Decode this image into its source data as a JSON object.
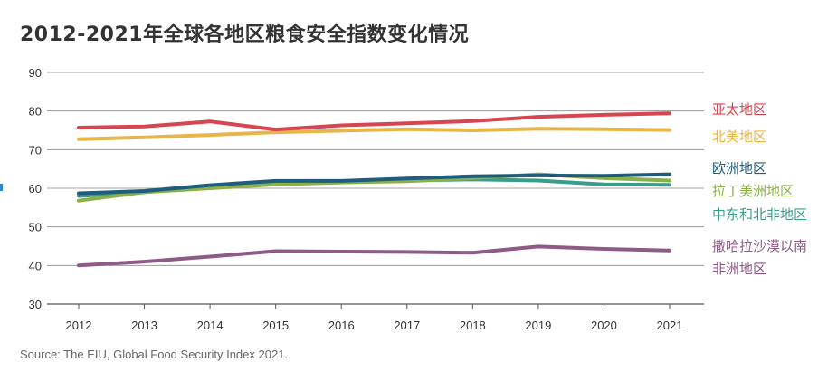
{
  "title": "2012-2021年全球各地区粮食安全指数变化情况",
  "source": "Source: The EIU, Global Food Security Index 2021.",
  "chart_data": {
    "type": "line",
    "title": "2012-2021年全球各地区粮食安全指数变化情况",
    "xlabel": "",
    "ylabel": "",
    "x": [
      "2012",
      "2013",
      "2014",
      "2015",
      "2016",
      "2017",
      "2018",
      "2019",
      "2020",
      "2021"
    ],
    "yticks": [
      30,
      40,
      50,
      60,
      70,
      80,
      90
    ],
    "ylim": [
      30,
      90
    ],
    "grid": "horizontal",
    "legend_position": "right, labels beside line ends",
    "series": [
      {
        "name": "亚太地区",
        "color": "#d64550",
        "values": [
          75.7,
          76.0,
          77.3,
          75.2,
          76.3,
          76.8,
          77.4,
          78.5,
          79.0,
          79.4
        ]
      },
      {
        "name": "北美地区",
        "color": "#e8b54a",
        "values": [
          72.7,
          73.2,
          73.8,
          74.5,
          74.9,
          75.3,
          75.0,
          75.4,
          75.3,
          75.1
        ]
      },
      {
        "name": "欧洲地区",
        "color": "#1f5d7f",
        "values": [
          58.7,
          59.3,
          60.8,
          61.9,
          61.9,
          62.5,
          63.1,
          63.3,
          63.2,
          63.6
        ]
      },
      {
        "name": "拉丁美洲地区",
        "color": "#8bb04a",
        "values": [
          56.8,
          59.0,
          60.0,
          61.0,
          61.5,
          61.8,
          62.6,
          63.6,
          62.6,
          62.0
        ]
      },
      {
        "name": "中东和北非地区",
        "color": "#3a9c8a",
        "values": [
          58.0,
          59.0,
          60.2,
          61.2,
          61.6,
          62.0,
          62.3,
          62.0,
          61.0,
          60.9
        ]
      },
      {
        "name": "撒哈拉沙漠以南\n非洲地区",
        "color": "#8e5a86",
        "values": [
          40.0,
          41.0,
          42.3,
          43.7,
          43.6,
          43.5,
          43.3,
          44.9,
          44.3,
          43.9
        ]
      }
    ]
  }
}
